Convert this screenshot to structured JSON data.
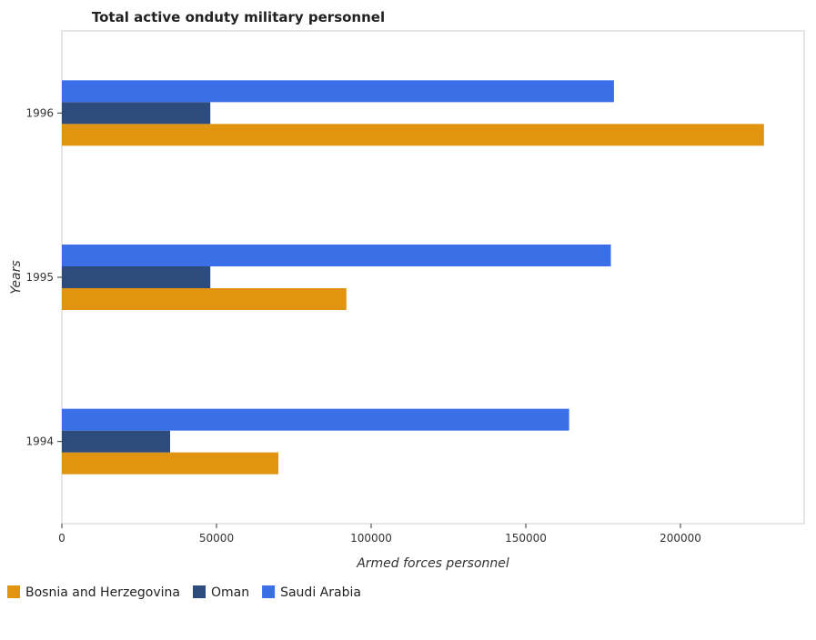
{
  "chart_data": {
    "type": "bar",
    "orientation": "horizontal",
    "title": "Total active onduty military personnel",
    "xlabel": "Armed forces personnel",
    "ylabel": "Years",
    "categories": [
      "1994",
      "1995",
      "1996"
    ],
    "xlim": [
      0,
      240000
    ],
    "xticks": [
      0,
      50000,
      100000,
      150000,
      200000
    ],
    "xtick_labels": [
      "0",
      "50000",
      "100000",
      "150000",
      "200000"
    ],
    "grid": false,
    "legend_position": "bottom-left",
    "series": [
      {
        "name": "Bosnia and Herzegovina",
        "color": "#e0940f",
        "values": [
          70000,
          92000,
          227000
        ]
      },
      {
        "name": "Oman",
        "color": "#2e4b7d",
        "values": [
          35000,
          48000,
          48000
        ]
      },
      {
        "name": "Saudi Arabia",
        "color": "#3a6fe8",
        "values": [
          164000,
          177500,
          178500
        ]
      }
    ]
  }
}
